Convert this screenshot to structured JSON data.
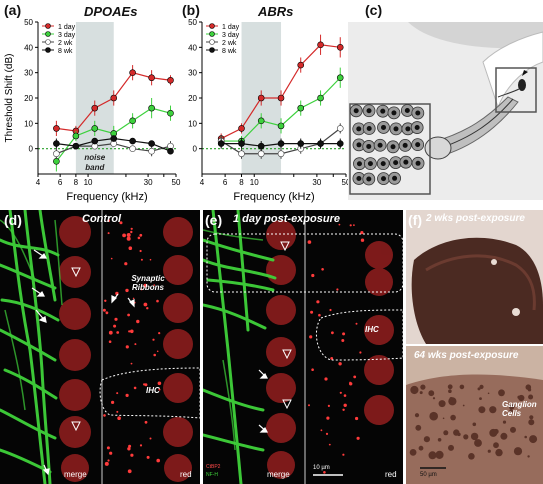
{
  "panels": {
    "a": {
      "letter": "(a)",
      "title": "DPOAEs"
    },
    "b": {
      "letter": "(b)",
      "title": "ABRs"
    },
    "c": {
      "letter": "(c)"
    },
    "d": {
      "letter": "(d)",
      "title": "Control",
      "annotation": "Synaptic Ribbons",
      "ihc": "IHC",
      "merge": "merge",
      "red": "red"
    },
    "e": {
      "letter": "(e)",
      "title": "1 day post-exposure",
      "ihc": "IHC",
      "merge": "merge",
      "red": "red",
      "scale": "10 µm",
      "stain1": "CtBP2",
      "stain2": "NF-H"
    },
    "f": {
      "letter": "(f)",
      "title_top": "2 wks post-exposure",
      "title_bottom": "64 wks post-exposure",
      "annotation": "Ganglion Cells",
      "scale": "50 µm"
    }
  },
  "colors": {
    "day1": "#d42a2a",
    "day3": "#3dd13d",
    "wk2": "#ffffff",
    "wk8": "#111111",
    "noise_band": "#d7dfdf"
  },
  "chart_data": [
    {
      "type": "line",
      "title": "DPOAEs",
      "xlabel": "Frequency (kHz)",
      "ylabel": "Threshold Shift (dB)",
      "xscale": "log",
      "xlim": [
        4,
        50
      ],
      "ylim": [
        -10,
        50
      ],
      "xticks": [
        4,
        6,
        8,
        10,
        20,
        30,
        40,
        50
      ],
      "xtick_labels": [
        "4",
        "6",
        "8",
        "10",
        "",
        "30",
        "",
        "50"
      ],
      "yticks": [
        0,
        10,
        20,
        30,
        40,
        50
      ],
      "noise_band": {
        "x": [
          8,
          16
        ],
        "label": "noise band"
      },
      "legend_position": "top-left",
      "x": [
        5.6,
        8,
        11.3,
        16,
        22.6,
        32,
        45.2
      ],
      "series": [
        {
          "name": "1 day",
          "color": "#d42a2a",
          "values": [
            8,
            7,
            16,
            20,
            30,
            28,
            27
          ],
          "errors": [
            3,
            2,
            3,
            3,
            3,
            3,
            2
          ]
        },
        {
          "name": "3 day",
          "color": "#3dd13d",
          "values": [
            -5,
            5,
            8,
            6,
            11,
            16,
            14
          ],
          "errors": [
            4,
            2,
            3,
            3,
            3,
            4,
            3
          ]
        },
        {
          "name": "2 wk",
          "color": "#ffffff",
          "values": [
            -2,
            1,
            1,
            2,
            0,
            -1,
            1
          ],
          "errors": [
            2,
            1,
            1,
            1,
            1,
            2,
            2
          ]
        },
        {
          "name": "8 wk",
          "color": "#111111",
          "values": [
            2,
            1,
            3,
            4,
            3,
            2,
            -1
          ],
          "errors": [
            2,
            1,
            1,
            1,
            1,
            1,
            1
          ]
        }
      ]
    },
    {
      "type": "line",
      "title": "ABRs",
      "xlabel": "Frequency (kHz)",
      "ylabel": "",
      "xscale": "log",
      "xlim": [
        4,
        50
      ],
      "ylim": [
        -10,
        50
      ],
      "xticks": [
        4,
        6,
        8,
        10,
        20,
        30,
        40,
        50
      ],
      "xtick_labels": [
        "4",
        "6",
        "8",
        "10",
        "",
        "30",
        "",
        "50"
      ],
      "yticks": [
        0,
        10,
        20,
        30,
        40,
        50
      ],
      "noise_band": {
        "x": [
          8,
          16
        ],
        "label": ""
      },
      "legend_position": "top-left",
      "x": [
        5.6,
        8,
        11.3,
        16,
        22.6,
        32,
        45.2
      ],
      "series": [
        {
          "name": "1 day",
          "color": "#d42a2a",
          "values": [
            4,
            8,
            20,
            20,
            33,
            41,
            40
          ],
          "errors": [
            2,
            2,
            3,
            3,
            3,
            4,
            4
          ]
        },
        {
          "name": "3 day",
          "color": "#3dd13d",
          "values": [
            3,
            3,
            11,
            9,
            16,
            20,
            28
          ],
          "errors": [
            2,
            2,
            3,
            3,
            3,
            3,
            4
          ]
        },
        {
          "name": "2 wk",
          "color": "#ffffff",
          "values": [
            3,
            -2,
            -2,
            -2,
            0,
            2,
            8
          ],
          "errors": [
            2,
            2,
            2,
            2,
            2,
            2,
            2
          ]
        },
        {
          "name": "8 wk",
          "color": "#111111",
          "values": [
            2,
            2,
            1,
            2,
            2,
            2,
            2
          ],
          "errors": [
            2,
            2,
            2,
            2,
            2,
            2,
            2
          ]
        }
      ]
    }
  ]
}
